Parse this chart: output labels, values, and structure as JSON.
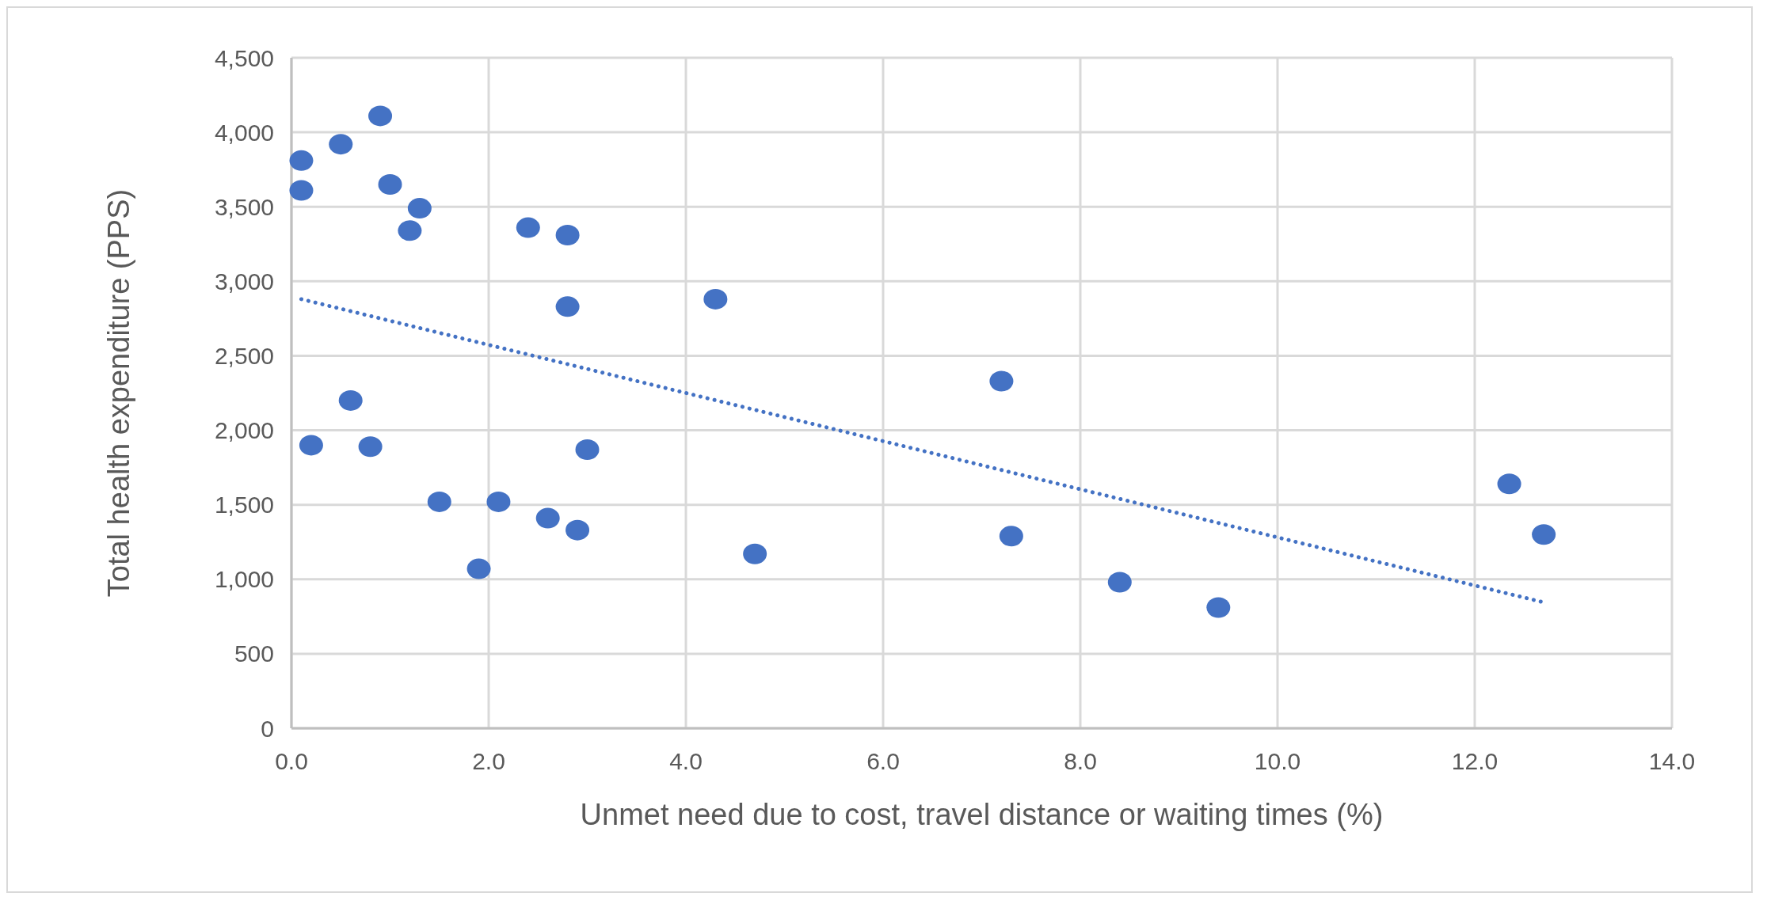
{
  "chart_data": {
    "type": "scatter",
    "xlabel": "Unmet need due to cost, travel distance or waiting times (%)",
    "ylabel": "Total health expenditure (PPS)",
    "xlim": [
      0,
      14
    ],
    "xticks": [
      {
        "value": 0,
        "label": "0.0"
      },
      {
        "value": 2,
        "label": "2.0"
      },
      {
        "value": 4,
        "label": "4.0"
      },
      {
        "value": 6,
        "label": "6.0"
      },
      {
        "value": 8,
        "label": "8.0"
      },
      {
        "value": 10,
        "label": "10.0"
      },
      {
        "value": 12,
        "label": "12.0"
      },
      {
        "value": 14,
        "label": "14.0"
      }
    ],
    "ylim": [
      0,
      4500
    ],
    "yticks": [
      0,
      500,
      {
        "value": 1000,
        "label": "1,000"
      },
      {
        "value": 1500,
        "label": "1,500"
      },
      {
        "value": 2000,
        "label": "2,000"
      },
      {
        "value": 2500,
        "label": "2,500"
      },
      {
        "value": 3000,
        "label": "3,000"
      },
      {
        "value": 3500,
        "label": "3,500"
      },
      {
        "value": 4000,
        "label": "4,000"
      },
      {
        "value": 4500,
        "label": "4,500"
      }
    ],
    "grid": true,
    "marker": "circle",
    "series": [
      {
        "color": "#4472c4",
        "x": [
          0.9,
          0.5,
          0.1,
          0.1,
          1.0,
          1.3,
          1.2,
          2.4,
          2.8,
          2.8,
          4.3,
          0.6,
          0.2,
          0.8,
          3.0,
          1.5,
          2.1,
          2.6,
          2.9,
          1.9,
          4.7,
          7.2,
          7.3,
          8.4,
          9.4,
          12.35,
          12.7
        ],
        "values": [
          4110,
          3920,
          3810,
          3610,
          3650,
          3490,
          3340,
          3360,
          3310,
          2830,
          2880,
          2200,
          1900,
          1890,
          1870,
          1520,
          1520,
          1410,
          1330,
          1070,
          1170,
          2330,
          1290,
          980,
          810,
          1640,
          1300
        ]
      },
      {
        "type": "line",
        "color": "#4472c4",
        "line_style": "dotted",
        "marker": "none",
        "x": [
          0.1,
          12.7
        ],
        "values": [
          2880,
          845
        ]
      }
    ]
  }
}
